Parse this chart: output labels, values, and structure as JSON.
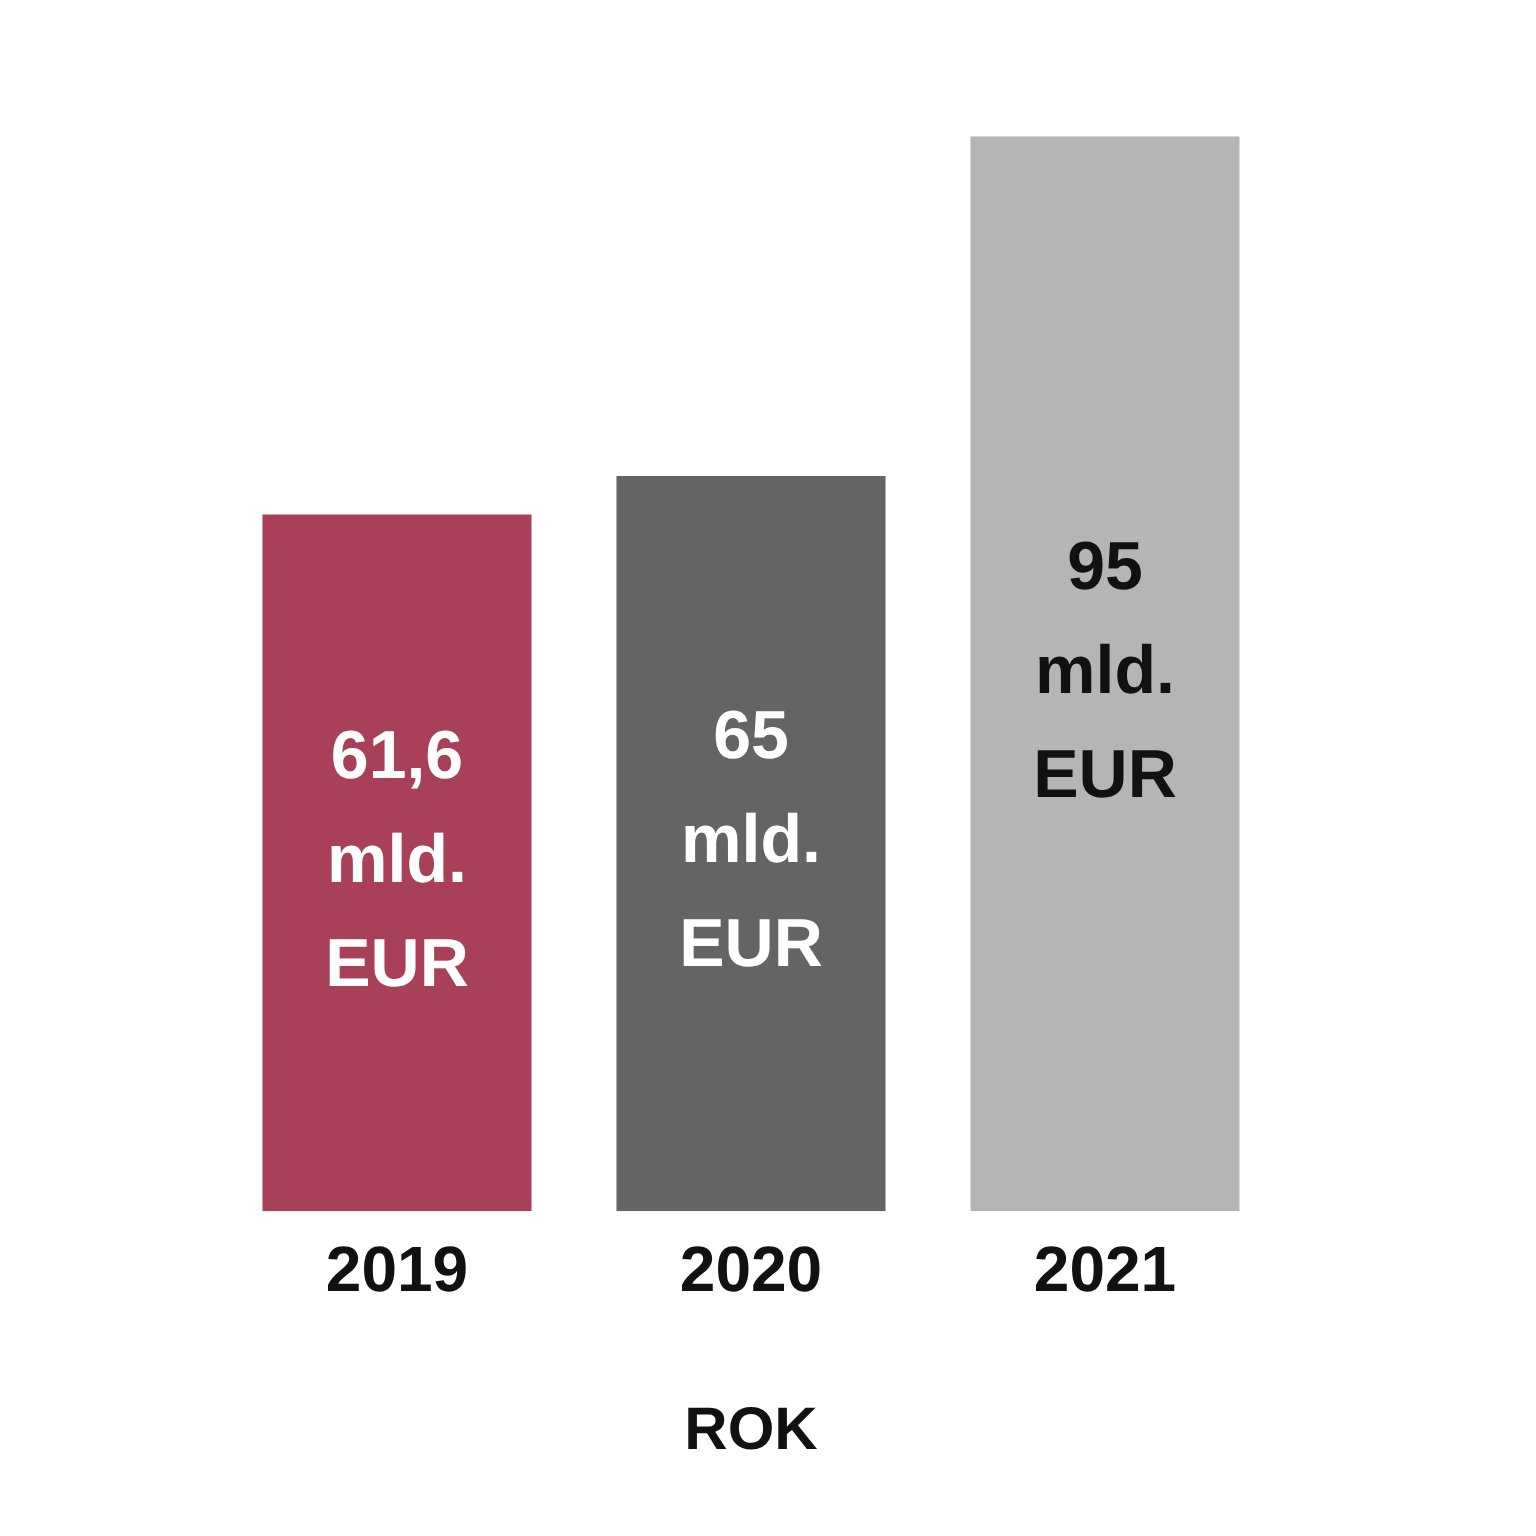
{
  "chart_data": {
    "type": "bar",
    "xlabel": "ROK",
    "categories": [
      "2019",
      "2020",
      "2021"
    ],
    "values": [
      61.6,
      65,
      95
    ],
    "colors": [
      "#a8405a",
      "#646464",
      "#b5b5b5"
    ],
    "value_labels": [
      "61,6 mld. EUR",
      "65 mld. EUR",
      "95 mld. EUR"
    ],
    "grid": false,
    "legend": false
  }
}
